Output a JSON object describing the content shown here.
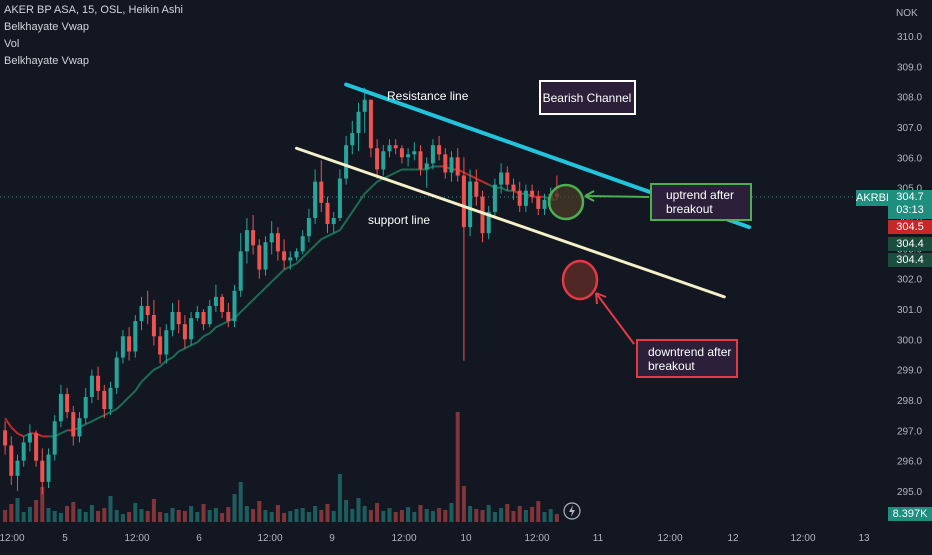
{
  "header": {
    "symbol_line": "AKER BP ASA, 15, OSL, Heikin Ashi",
    "indicators": [
      "Belkhayate Vwap",
      "Vol",
      "Belkhayate Vwap"
    ]
  },
  "price_axis": {
    "currency": "NOK",
    "ticks": [
      "310.0",
      "309.0",
      "308.0",
      "307.0",
      "306.0",
      "305.0",
      "304.0",
      "303.0",
      "302.0",
      "301.0",
      "300.0",
      "299.0",
      "298.0",
      "297.0",
      "296.0",
      "295.0"
    ]
  },
  "price_tags": {
    "symbol": "AKRBP",
    "last": "304.7",
    "countdown": "03:13",
    "tag2": "304.5",
    "tag3": "304.4",
    "tag4": "304.4",
    "volume": "8.397K"
  },
  "time_axis": {
    "labels": [
      "12:00",
      "5",
      "12:00",
      "6",
      "12:00",
      "9",
      "12:00",
      "10",
      "12:00",
      "11",
      "12:00",
      "12",
      "12:00",
      "13"
    ]
  },
  "annotations": {
    "resistance": "Resistance line",
    "support": "support line",
    "channel": "Bearish Channel",
    "uptrend": [
      "uptrend after",
      "breakout"
    ],
    "downtrend": [
      "downtrend after",
      "breakout"
    ]
  },
  "colors": {
    "background": "#131722",
    "up": "#26a69a",
    "down": "#ef5350",
    "resistance_line": "#22c4dd",
    "support_line": "#f5f0c8",
    "vwap_red": "#c62828",
    "vwap_green": "#1b6e55"
  },
  "chart_data": {
    "type": "candlestick",
    "chart_style": "Heikin Ashi",
    "timeframe": "15",
    "ylim": [
      294.6,
      310.5
    ],
    "ohlc": [
      [
        297.0,
        297.3,
        296.2,
        296.5
      ],
      [
        296.5,
        296.8,
        295.2,
        295.5
      ],
      [
        295.5,
        296.2,
        295.0,
        296.0
      ],
      [
        296.0,
        296.8,
        295.8,
        296.6
      ],
      [
        296.6,
        297.2,
        296.3,
        296.9
      ],
      [
        296.9,
        297.0,
        295.8,
        296.0
      ],
      [
        296.0,
        296.4,
        294.9,
        295.3
      ],
      [
        295.3,
        296.4,
        295.1,
        296.2
      ],
      [
        296.2,
        297.5,
        296.0,
        297.3
      ],
      [
        297.3,
        298.5,
        297.1,
        298.2
      ],
      [
        298.2,
        298.4,
        297.4,
        297.6
      ],
      [
        297.6,
        297.8,
        296.5,
        296.8
      ],
      [
        296.8,
        297.6,
        296.6,
        297.4
      ],
      [
        297.4,
        298.4,
        297.2,
        298.1
      ],
      [
        298.1,
        299.0,
        297.9,
        298.8
      ],
      [
        298.8,
        299.1,
        298.0,
        298.3
      ],
      [
        298.3,
        298.5,
        297.4,
        297.7
      ],
      [
        297.7,
        298.6,
        297.5,
        298.4
      ],
      [
        298.4,
        299.6,
        298.2,
        299.4
      ],
      [
        299.4,
        300.3,
        299.2,
        300.1
      ],
      [
        300.1,
        300.4,
        299.3,
        299.6
      ],
      [
        299.6,
        300.8,
        299.4,
        300.6
      ],
      [
        300.6,
        301.4,
        300.3,
        301.1
      ],
      [
        301.1,
        301.6,
        300.5,
        300.8
      ],
      [
        300.8,
        301.3,
        299.8,
        300.1
      ],
      [
        300.1,
        300.4,
        299.2,
        299.5
      ],
      [
        299.5,
        300.5,
        299.2,
        300.3
      ],
      [
        300.3,
        301.2,
        300.1,
        300.9
      ],
      [
        300.9,
        301.3,
        300.2,
        300.5
      ],
      [
        300.5,
        300.8,
        299.7,
        300.0
      ],
      [
        300.0,
        300.9,
        299.8,
        300.7
      ],
      [
        300.7,
        301.1,
        300.6,
        300.9
      ],
      [
        300.9,
        301.0,
        300.3,
        300.5
      ],
      [
        300.5,
        301.3,
        300.4,
        301.1
      ],
      [
        301.1,
        301.8,
        300.9,
        301.4
      ],
      [
        301.4,
        301.5,
        300.7,
        300.9
      ],
      [
        300.9,
        301.2,
        300.4,
        300.6
      ],
      [
        300.6,
        301.8,
        300.4,
        301.6
      ],
      [
        301.6,
        303.5,
        301.4,
        302.9
      ],
      [
        302.9,
        304.0,
        302.5,
        303.6
      ],
      [
        303.6,
        304.1,
        302.8,
        303.1
      ],
      [
        303.1,
        303.3,
        302.0,
        302.3
      ],
      [
        302.3,
        303.4,
        302.1,
        303.2
      ],
      [
        303.2,
        303.9,
        302.8,
        303.5
      ],
      [
        303.5,
        303.7,
        302.6,
        302.9
      ],
      [
        302.9,
        303.3,
        302.3,
        302.6
      ],
      [
        302.6,
        302.9,
        302.3,
        302.7
      ],
      [
        302.7,
        303.0,
        302.6,
        302.9
      ],
      [
        302.9,
        303.6,
        302.8,
        303.4
      ],
      [
        303.4,
        304.3,
        303.2,
        304.0
      ],
      [
        304.0,
        305.6,
        303.8,
        305.2
      ],
      [
        305.2,
        305.9,
        304.2,
        304.5
      ],
      [
        304.5,
        304.7,
        303.5,
        303.8
      ],
      [
        303.8,
        304.2,
        303.5,
        304.0
      ],
      [
        304.0,
        305.6,
        303.9,
        305.3
      ],
      [
        305.3,
        306.7,
        305.1,
        306.4
      ],
      [
        306.4,
        307.2,
        306.1,
        306.8
      ],
      [
        306.8,
        307.8,
        306.2,
        307.5
      ],
      [
        307.5,
        308.3,
        306.8,
        307.9
      ],
      [
        307.9,
        307.9,
        306.0,
        306.3
      ],
      [
        306.3,
        306.6,
        305.3,
        305.6
      ],
      [
        305.6,
        306.4,
        305.4,
        306.2
      ],
      [
        306.2,
        306.6,
        306.0,
        306.4
      ],
      [
        306.4,
        306.6,
        306.1,
        306.3
      ],
      [
        306.3,
        306.4,
        305.8,
        306.0
      ],
      [
        306.0,
        306.3,
        305.7,
        306.1
      ],
      [
        306.1,
        306.5,
        305.9,
        306.2
      ],
      [
        306.2,
        306.4,
        305.4,
        305.6
      ],
      [
        305.6,
        306.0,
        305.0,
        305.8
      ],
      [
        305.8,
        306.6,
        305.6,
        306.4
      ],
      [
        306.4,
        306.7,
        305.9,
        306.1
      ],
      [
        306.1,
        306.3,
        305.3,
        305.5
      ],
      [
        305.5,
        306.2,
        305.2,
        306.0
      ],
      [
        306.0,
        306.3,
        305.2,
        305.4
      ],
      [
        305.4,
        306.0,
        299.3,
        303.7
      ],
      [
        303.7,
        305.6,
        303.4,
        305.2
      ],
      [
        305.2,
        305.6,
        304.4,
        304.7
      ],
      [
        304.7,
        304.9,
        303.2,
        303.5
      ],
      [
        303.5,
        304.4,
        303.3,
        304.2
      ],
      [
        304.2,
        305.3,
        304.0,
        305.1
      ],
      [
        305.1,
        305.8,
        304.8,
        305.5
      ],
      [
        305.5,
        305.7,
        304.9,
        305.1
      ],
      [
        305.1,
        305.3,
        304.6,
        304.9
      ],
      [
        304.9,
        305.2,
        304.2,
        304.4
      ],
      [
        304.4,
        305.1,
        304.2,
        304.9
      ],
      [
        304.9,
        305.1,
        304.5,
        304.7
      ],
      [
        304.7,
        304.9,
        304.1,
        304.3
      ],
      [
        304.3,
        304.8,
        304.1,
        304.6
      ],
      [
        304.6,
        305.0,
        304.4,
        304.8
      ],
      [
        304.8,
        305.4,
        304.6,
        304.7
      ]
    ],
    "volume": [
      1.2,
      1.8,
      2.4,
      1.0,
      1.5,
      2.2,
      3.5,
      1.4,
      1.1,
      0.9,
      1.6,
      2.0,
      1.3,
      1.0,
      1.7,
      1.1,
      1.4,
      2.6,
      1.2,
      0.8,
      1.0,
      1.9,
      1.3,
      1.1,
      2.3,
      1.0,
      0.9,
      1.4,
      1.2,
      1.1,
      1.6,
      1.0,
      1.8,
      1.2,
      1.4,
      0.9,
      1.5,
      2.8,
      4.0,
      1.6,
      1.3,
      2.1,
      1.2,
      1.0,
      1.7,
      0.9,
      1.1,
      1.3,
      1.4,
      1.0,
      1.6,
      1.2,
      1.8,
      1.1,
      4.8,
      2.2,
      1.3,
      2.4,
      1.6,
      1.2,
      1.9,
      1.1,
      1.4,
      1.0,
      1.2,
      1.5,
      1.0,
      1.7,
      1.3,
      1.1,
      1.4,
      1.2,
      1.9,
      11.0,
      3.6,
      1.6,
      1.3,
      1.2,
      1.7,
      1.0,
      1.4,
      1.8,
      1.1,
      1.6,
      1.2,
      1.5,
      2.1,
      1.0,
      1.3,
      0.8
    ],
    "vwap": [
      297.4,
      297.1,
      296.9,
      296.8,
      296.9,
      296.9,
      296.8,
      296.8,
      296.8,
      296.9,
      297.0,
      297.0,
      297.1,
      297.2,
      297.3,
      297.4,
      297.5,
      297.6,
      297.7,
      297.9,
      298.1,
      298.3,
      298.6,
      298.8,
      299.0,
      299.1,
      299.3,
      299.4,
      299.6,
      299.7,
      299.8,
      299.9,
      300.1,
      300.2,
      300.4,
      300.5,
      300.6,
      300.7,
      300.9,
      301.1,
      301.3,
      301.5,
      301.7,
      301.9,
      302.1,
      302.3,
      302.4,
      302.5,
      302.7,
      302.9,
      303.1,
      303.3,
      303.4,
      303.5,
      303.6,
      303.9,
      304.2,
      304.5,
      304.8,
      305.0,
      305.2,
      305.3,
      305.4,
      305.5,
      305.6,
      305.6,
      305.6,
      305.6,
      305.6,
      305.7,
      305.7,
      305.7,
      305.6,
      305.6,
      305.5,
      305.4,
      305.3,
      305.2,
      305.1,
      305.0,
      305.0,
      304.9,
      304.9,
      304.8,
      304.8,
      304.7,
      304.7,
      304.7,
      304.6,
      304.6
    ],
    "trendlines": {
      "resistance": {
        "start": [
          55,
          308.4
        ],
        "end": [
          120,
          303.7
        ]
      },
      "support": {
        "start": [
          47,
          306.3
        ],
        "end": [
          116,
          301.4
        ]
      }
    }
  }
}
